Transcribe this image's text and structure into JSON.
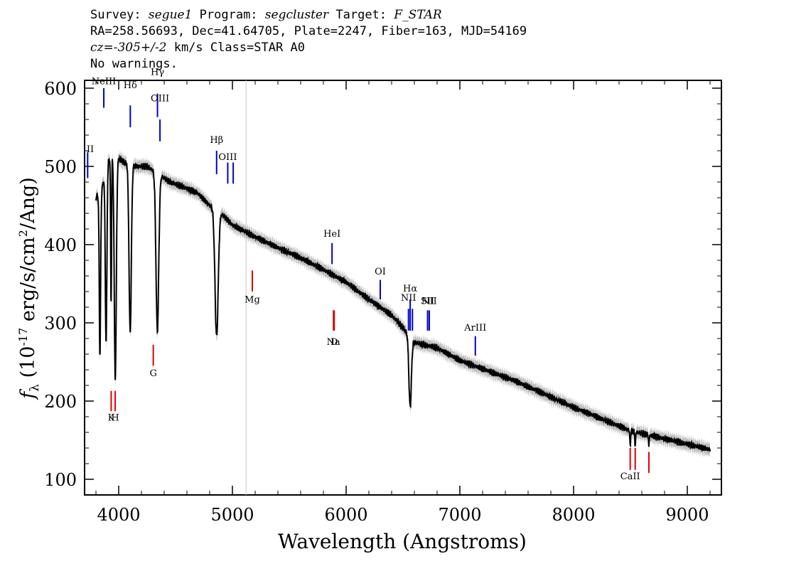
{
  "header": {
    "survey_label": "Survey:",
    "survey_value": "segue1",
    "program_label": "Program:",
    "program_value": "segcluster",
    "target_label": "Target:",
    "target_value": "F_STAR",
    "line2": "RA=258.56693, Dec=41.64705, Plate=2247, Fiber=163, MJD=54169",
    "cz_label": "cz=",
    "cz_value": "-305+/-2",
    "cz_rest": " km/s Class=STAR A0",
    "line4": "No warnings."
  },
  "chart_data": {
    "type": "line",
    "xlabel": "Wavelength (Angstroms)",
    "ylabel": "f_λ (10^-17 erg/s/cm^2/Ang)",
    "xlim": [
      3700,
      9300
    ],
    "ylim": [
      80,
      610
    ],
    "x_ticks": [
      4000,
      5000,
      6000,
      7000,
      8000,
      9000
    ],
    "y_ticks": [
      100,
      200,
      300,
      400,
      500,
      600
    ],
    "marker_line_x": 5120,
    "colors": {
      "flux": "#000000",
      "error_band": "#bbbbbb",
      "emission": "#0000cc",
      "absorption": "#dd0000",
      "marker": "#c8c8c8"
    },
    "series": [
      {
        "continuum_points": [
          [
            3800,
            460
          ],
          [
            3850,
            470
          ],
          [
            3900,
            505
          ],
          [
            3950,
            515
          ],
          [
            4000,
            510
          ],
          [
            4050,
            505
          ],
          [
            4150,
            500
          ],
          [
            4250,
            500
          ],
          [
            4350,
            490
          ],
          [
            4450,
            480
          ],
          [
            4600,
            472
          ],
          [
            4700,
            465
          ],
          [
            4800,
            450
          ],
          [
            4900,
            440
          ],
          [
            5000,
            425
          ],
          [
            5200,
            410
          ],
          [
            5400,
            396
          ],
          [
            5600,
            383
          ],
          [
            5800,
            368
          ],
          [
            6000,
            352
          ],
          [
            6200,
            330
          ],
          [
            6400,
            310
          ],
          [
            6550,
            285
          ],
          [
            6600,
            275
          ],
          [
            6800,
            268
          ],
          [
            7000,
            252
          ],
          [
            7500,
            225
          ],
          [
            8000,
            192
          ],
          [
            8500,
            162
          ],
          [
            9000,
            145
          ],
          [
            9200,
            138
          ]
        ],
        "absorption_lines": [
          {
            "x": 3835,
            "min": 260,
            "w": 6
          },
          {
            "x": 3889,
            "min": 275,
            "w": 7
          },
          {
            "x": 3933,
            "min": 325,
            "w": 4
          },
          {
            "x": 3970,
            "min": 228,
            "w": 9
          },
          {
            "x": 4101,
            "min": 288,
            "w": 10
          },
          {
            "x": 4340,
            "min": 290,
            "w": 12
          },
          {
            "x": 4861,
            "min": 282,
            "w": 14
          },
          {
            "x": 6563,
            "min": 193,
            "w": 11
          },
          {
            "x": 8498,
            "min": 140,
            "w": 3
          },
          {
            "x": 8542,
            "min": 140,
            "w": 3
          },
          {
            "x": 8662,
            "min": 142,
            "w": 3
          }
        ]
      }
    ],
    "emission_lines": [
      {
        "label": "II",
        "x": 3727,
        "y1": 485,
        "y2": 518,
        "label_y": 518
      },
      {
        "label": "NeIII",
        "x": 3869,
        "y1": 575,
        "y2": 600,
        "label_y": 605
      },
      {
        "label": "Hδ",
        "x": 4102,
        "y1": 550,
        "y2": 578,
        "label_y": 600
      },
      {
        "label": "Hγ",
        "x": 4341,
        "y1": 563,
        "y2": 593,
        "label_y": 617
      },
      {
        "label": "OIII",
        "x": 4363,
        "y1": 532,
        "y2": 560,
        "label_y": 583
      },
      {
        "label": "Hβ",
        "x": 4861,
        "y1": 490,
        "y2": 520,
        "label_y": 530
      },
      {
        "label": "OIII",
        "x": 4959,
        "y1": 478,
        "y2": 505,
        "label_y": 508
      },
      {
        "label": "",
        "x": 5007,
        "y1": 478,
        "y2": 505,
        "label_y": 0
      },
      {
        "label": "HeI",
        "x": 5876,
        "y1": 375,
        "y2": 402,
        "label_y": 410
      },
      {
        "label": "OI",
        "x": 6300,
        "y1": 330,
        "y2": 355,
        "label_y": 362
      },
      {
        "label": "NII",
        "x": 6548,
        "y1": 290,
        "y2": 318,
        "label_y": 328
      },
      {
        "label": "Hα",
        "x": 6563,
        "y1": 290,
        "y2": 330,
        "label_y": 340
      },
      {
        "label": "",
        "x": 6583,
        "y1": 290,
        "y2": 318,
        "label_y": 0
      },
      {
        "label": "SII",
        "x": 6716,
        "y1": 290,
        "y2": 316,
        "label_y": 324
      },
      {
        "label": "NII",
        "x": 6731,
        "y1": 290,
        "y2": 316,
        "label_y": 324
      },
      {
        "label": "ArIII",
        "x": 7136,
        "y1": 258,
        "y2": 283,
        "label_y": 290
      }
    ],
    "absorption_markers": [
      {
        "label": "K",
        "x": 3934,
        "y1": 187,
        "y2": 213,
        "label_y": 175
      },
      {
        "label": "H",
        "x": 3969,
        "y1": 187,
        "y2": 213,
        "label_y": 175
      },
      {
        "label": "G",
        "x": 4304,
        "y1": 245,
        "y2": 272,
        "label_y": 232
      },
      {
        "label": "Mg",
        "x": 5175,
        "y1": 340,
        "y2": 367,
        "label_y": 326
      },
      {
        "label": "Na",
        "x": 5889,
        "y1": 290,
        "y2": 316,
        "label_y": 272
      },
      {
        "label": "D",
        "x": 5895,
        "y1": 290,
        "y2": 316,
        "label_y": 272
      },
      {
        "label": "CaII",
        "x": 8498,
        "y1": 112,
        "y2": 140,
        "label_y": 100
      },
      {
        "label": "",
        "x": 8542,
        "y1": 112,
        "y2": 140,
        "label_y": 0
      },
      {
        "label": "",
        "x": 8662,
        "y1": 108,
        "y2": 135,
        "label_y": 0
      }
    ]
  }
}
